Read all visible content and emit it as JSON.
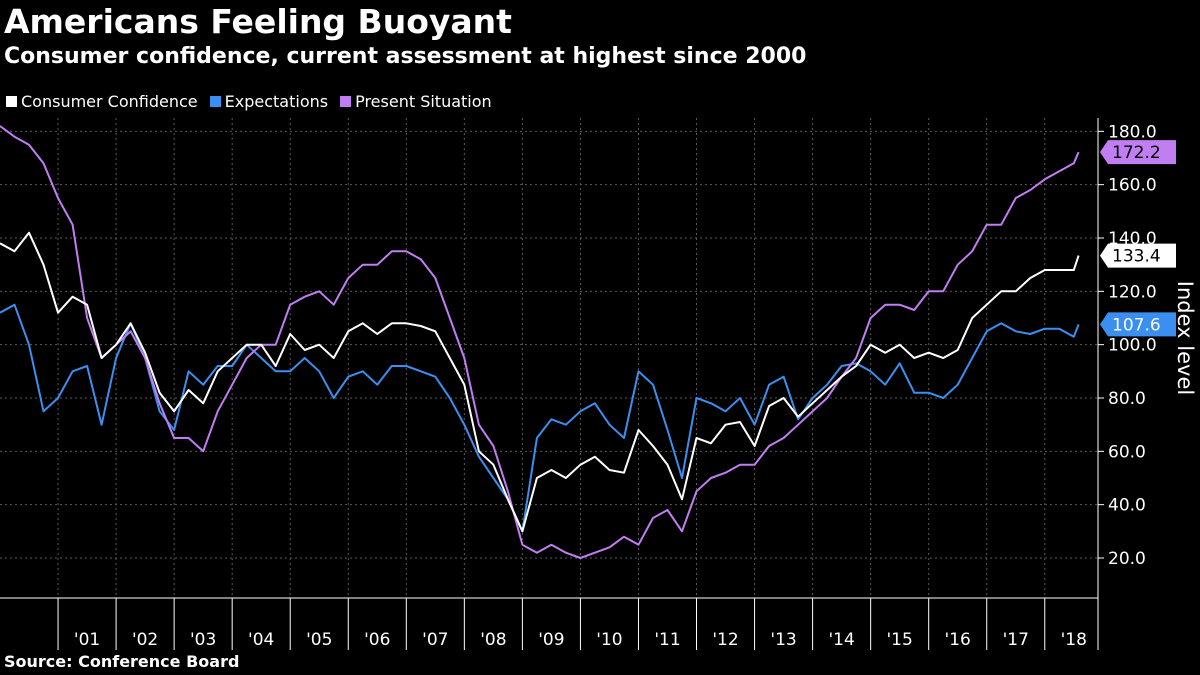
{
  "title": "Americans Feeling Buoyant",
  "subtitle": "Consumer confidence, current assessment at highest since 2000",
  "source": "Source:  Conference Board",
  "colors": {
    "background": "#000000",
    "consumer_confidence": "#ffffff",
    "expectations": "#3b8ff0",
    "present_situation": "#c07ef2",
    "grid": "#5a5a5a"
  },
  "chart_data": {
    "type": "line",
    "title": "Americans Feeling Buoyant",
    "subtitle": "Consumer confidence, current assessment at highest since 2000",
    "ylabel": "Index level",
    "ylim": [
      5,
      185
    ],
    "yticks": [
      20,
      40,
      60,
      80,
      100,
      120,
      140,
      160,
      180
    ],
    "ytick_labels": [
      "20.0",
      "40.0",
      "60.0",
      "80.0",
      "100.0",
      "120.0",
      "140.0",
      "160.0",
      "180.0"
    ],
    "xlim": [
      2000.0,
      2018.917
    ],
    "xticks": [
      "'01",
      "'02",
      "'03",
      "'04",
      "'05",
      "'06",
      "'07",
      "'08",
      "'09",
      "'10",
      "'11",
      "'12",
      "'13",
      "'14",
      "'15",
      "'16",
      "'17",
      "'18"
    ],
    "grid": true,
    "legend": "top-left",
    "x_resolution": "quarterly",
    "series": [
      {
        "name": "Consumer Confidence",
        "color": "#ffffff",
        "last_label": "133.4",
        "x": [
          2000.0,
          2000.25,
          2000.5,
          2000.75,
          2001.0,
          2001.25,
          2001.5,
          2001.75,
          2002.0,
          2002.25,
          2002.5,
          2002.75,
          2003.0,
          2003.25,
          2003.5,
          2003.75,
          2004.0,
          2004.25,
          2004.5,
          2004.75,
          2005.0,
          2005.25,
          2005.5,
          2005.75,
          2006.0,
          2006.25,
          2006.5,
          2006.75,
          2007.0,
          2007.25,
          2007.5,
          2007.75,
          2008.0,
          2008.25,
          2008.5,
          2008.75,
          2009.0,
          2009.25,
          2009.5,
          2009.75,
          2010.0,
          2010.25,
          2010.5,
          2010.75,
          2011.0,
          2011.25,
          2011.5,
          2011.75,
          2012.0,
          2012.25,
          2012.5,
          2012.75,
          2013.0,
          2013.25,
          2013.5,
          2013.75,
          2014.0,
          2014.25,
          2014.5,
          2014.75,
          2015.0,
          2015.25,
          2015.5,
          2015.75,
          2016.0,
          2016.25,
          2016.5,
          2016.75,
          2017.0,
          2017.25,
          2017.5,
          2017.75,
          2018.0,
          2018.25,
          2018.5,
          2018.583
        ],
        "values": [
          138,
          135,
          142,
          130,
          112,
          118,
          115,
          95,
          100,
          108,
          97,
          82,
          75,
          83,
          78,
          90,
          95,
          100,
          100,
          92,
          104,
          98,
          100,
          95,
          105,
          108,
          104,
          108,
          108,
          107,
          105,
          95,
          85,
          60,
          55,
          42,
          30,
          50,
          53,
          50,
          55,
          58,
          53,
          52,
          68,
          62,
          55,
          42,
          65,
          63,
          70,
          71,
          62,
          77,
          80,
          73,
          78,
          83,
          88,
          92,
          100,
          97,
          100,
          95,
          97,
          95,
          98,
          110,
          115,
          120,
          120,
          125,
          128,
          128,
          128,
          133.4
        ]
      },
      {
        "name": "Expectations",
        "color": "#3b8ff0",
        "last_label": "107.6",
        "x": [
          2000.0,
          2000.25,
          2000.5,
          2000.75,
          2001.0,
          2001.25,
          2001.5,
          2001.75,
          2002.0,
          2002.25,
          2002.5,
          2002.75,
          2003.0,
          2003.25,
          2003.5,
          2003.75,
          2004.0,
          2004.25,
          2004.5,
          2004.75,
          2005.0,
          2005.25,
          2005.5,
          2005.75,
          2006.0,
          2006.25,
          2006.5,
          2006.75,
          2007.0,
          2007.25,
          2007.5,
          2007.75,
          2008.0,
          2008.25,
          2008.5,
          2008.75,
          2009.0,
          2009.25,
          2009.5,
          2009.75,
          2010.0,
          2010.25,
          2010.5,
          2010.75,
          2011.0,
          2011.25,
          2011.5,
          2011.75,
          2012.0,
          2012.25,
          2012.5,
          2012.75,
          2013.0,
          2013.25,
          2013.5,
          2013.75,
          2014.0,
          2014.25,
          2014.5,
          2014.75,
          2015.0,
          2015.25,
          2015.5,
          2015.75,
          2016.0,
          2016.25,
          2016.5,
          2016.75,
          2017.0,
          2017.25,
          2017.5,
          2017.75,
          2018.0,
          2018.25,
          2018.5,
          2018.583
        ],
        "values": [
          112,
          115,
          100,
          75,
          80,
          90,
          92,
          70,
          95,
          108,
          95,
          75,
          68,
          90,
          85,
          92,
          92,
          100,
          95,
          90,
          90,
          95,
          90,
          80,
          88,
          90,
          85,
          92,
          92,
          90,
          88,
          80,
          70,
          58,
          50,
          42,
          30,
          65,
          72,
          70,
          75,
          78,
          70,
          65,
          90,
          85,
          68,
          50,
          80,
          78,
          75,
          80,
          70,
          85,
          88,
          72,
          80,
          85,
          92,
          93,
          90,
          85,
          93,
          82,
          82,
          80,
          85,
          95,
          105,
          108,
          105,
          104,
          106,
          106,
          103,
          107.6
        ]
      },
      {
        "name": "Present Situation",
        "color": "#c07ef2",
        "last_label": "172.2",
        "x": [
          2000.0,
          2000.25,
          2000.5,
          2000.75,
          2001.0,
          2001.25,
          2001.5,
          2001.75,
          2002.0,
          2002.25,
          2002.5,
          2002.75,
          2003.0,
          2003.25,
          2003.5,
          2003.75,
          2004.0,
          2004.25,
          2004.5,
          2004.75,
          2005.0,
          2005.25,
          2005.5,
          2005.75,
          2006.0,
          2006.25,
          2006.5,
          2006.75,
          2007.0,
          2007.25,
          2007.5,
          2007.75,
          2008.0,
          2008.25,
          2008.5,
          2008.75,
          2009.0,
          2009.25,
          2009.5,
          2009.75,
          2010.0,
          2010.25,
          2010.5,
          2010.75,
          2011.0,
          2011.25,
          2011.5,
          2011.75,
          2012.0,
          2012.25,
          2012.5,
          2012.75,
          2013.0,
          2013.25,
          2013.5,
          2013.75,
          2014.0,
          2014.25,
          2014.5,
          2014.75,
          2015.0,
          2015.25,
          2015.5,
          2015.75,
          2016.0,
          2016.25,
          2016.5,
          2016.75,
          2017.0,
          2017.25,
          2017.5,
          2017.75,
          2018.0,
          2018.25,
          2018.5,
          2018.583
        ],
        "values": [
          182,
          178,
          175,
          168,
          155,
          145,
          110,
          95,
          100,
          105,
          95,
          78,
          65,
          65,
          60,
          75,
          85,
          95,
          100,
          100,
          115,
          118,
          120,
          115,
          125,
          130,
          130,
          135,
          135,
          132,
          125,
          110,
          95,
          70,
          62,
          45,
          25,
          22,
          25,
          22,
          20,
          22,
          24,
          28,
          25,
          35,
          38,
          30,
          45,
          50,
          52,
          55,
          55,
          62,
          65,
          70,
          75,
          80,
          88,
          95,
          110,
          115,
          115,
          113,
          120,
          120,
          130,
          135,
          145,
          145,
          155,
          158,
          162,
          165,
          168,
          172.2
        ]
      }
    ]
  }
}
